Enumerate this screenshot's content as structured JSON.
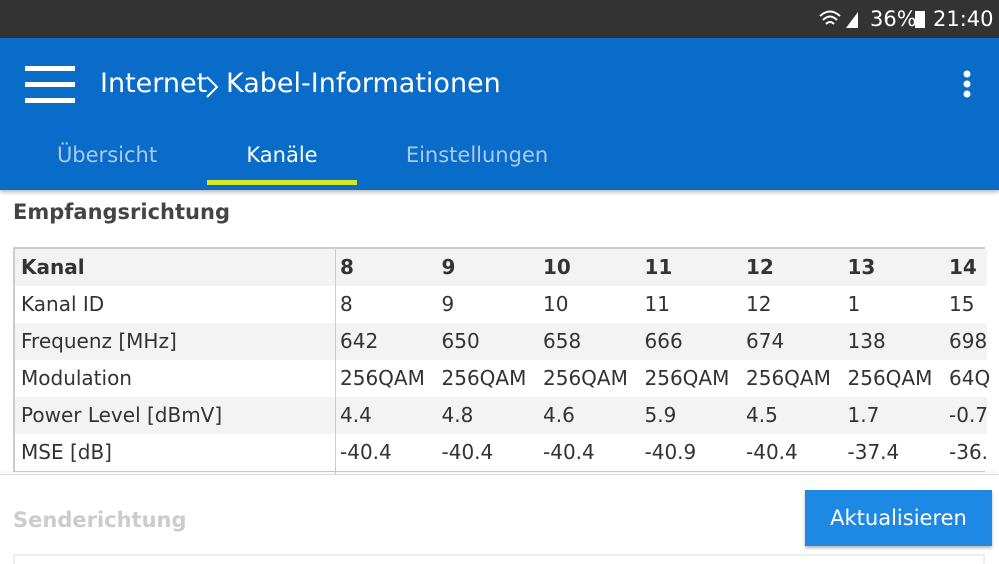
{
  "status_bar": {
    "battery": "36%",
    "time": "21:40"
  },
  "header": {
    "title": "Internet",
    "subtitle": "Kabel-Informationen"
  },
  "tabs": [
    "Übersicht",
    "Kanäle",
    "Einstellungen"
  ],
  "active_tab": 1,
  "section_1": "Empfangsrichtung",
  "table": {
    "rows": [
      [
        "Kanal",
        "8",
        "9",
        "10",
        "11",
        "12",
        "13",
        "14"
      ],
      [
        "Kanal ID",
        "8",
        "9",
        "10",
        "11",
        "12",
        "1",
        "15"
      ],
      [
        "Frequenz [MHz]",
        "642",
        "650",
        "658",
        "666",
        "674",
        "138",
        "698"
      ],
      [
        "Modulation",
        "256QAM",
        "256QAM",
        "256QAM",
        "256QAM",
        "256QAM",
        "256QAM",
        "64Q"
      ],
      [
        "Power Level [dBmV]",
        "4.4",
        "4.8",
        "4.6",
        "5.9",
        "4.5",
        "1.7",
        "-0.7"
      ],
      [
        "MSE [dB]",
        "-40.4",
        "-40.4",
        "-40.4",
        "-40.9",
        "-40.4",
        "-37.4",
        "-36."
      ]
    ]
  },
  "section_2": "Senderichtung",
  "button": "Aktualisieren"
}
